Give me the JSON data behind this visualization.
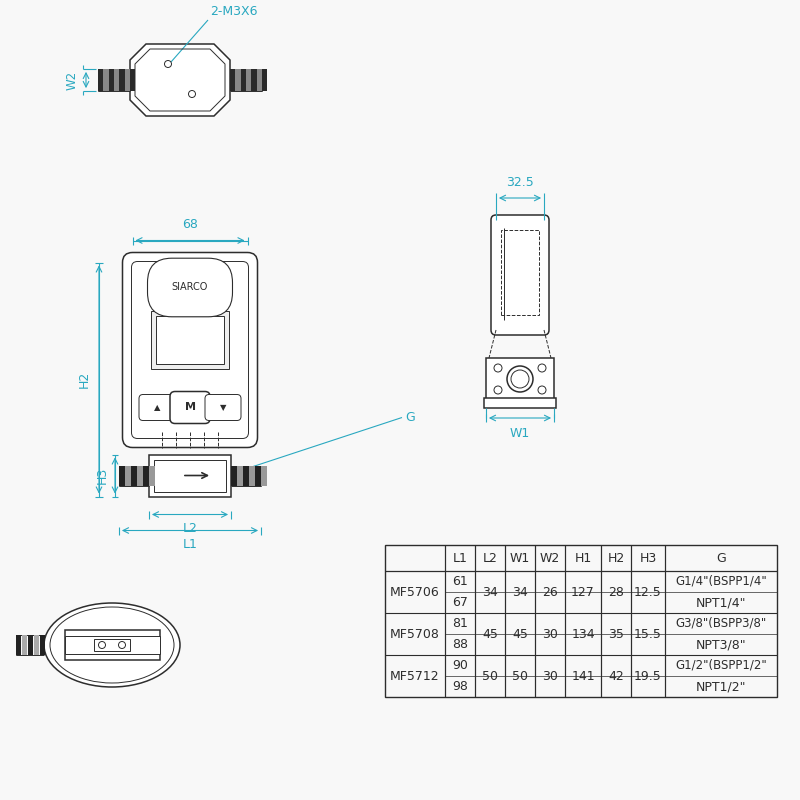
{
  "bg_color": "#f8f8f8",
  "line_color": "#2d2d2d",
  "cyan_color": "#29a8c0",
  "table_headers": [
    "",
    "L1",
    "L2",
    "W1",
    "W2",
    "H1",
    "H2",
    "H3",
    "G"
  ],
  "dim_68": "68",
  "dim_32_5": "32.5",
  "dim_w2": "W2",
  "dim_h2": "H2",
  "dim_h3": "H3",
  "dim_l1": "L1",
  "dim_l2": "L2",
  "dim_w1": "W1",
  "dim_g": "G",
  "label_2m3x6": "2-M3X6",
  "label_siarco": "SIARCO",
  "rows_data": [
    [
      "MF5706",
      "61",
      "67",
      "34",
      "34",
      "26",
      "127",
      "28",
      "12.5",
      "G1/4\"(BSPP1/4\"",
      "NPT1/4\""
    ],
    [
      "MF5708",
      "81",
      "88",
      "45",
      "45",
      "30",
      "134",
      "35",
      "15.5",
      "G3/8\"(BSPP3/8\"",
      "NPT3/8\""
    ],
    [
      "MF5712",
      "90",
      "98",
      "50",
      "50",
      "30",
      "141",
      "42",
      "19.5",
      "G1/2\"(BSPP1/2\"",
      "NPT1/2\""
    ]
  ]
}
